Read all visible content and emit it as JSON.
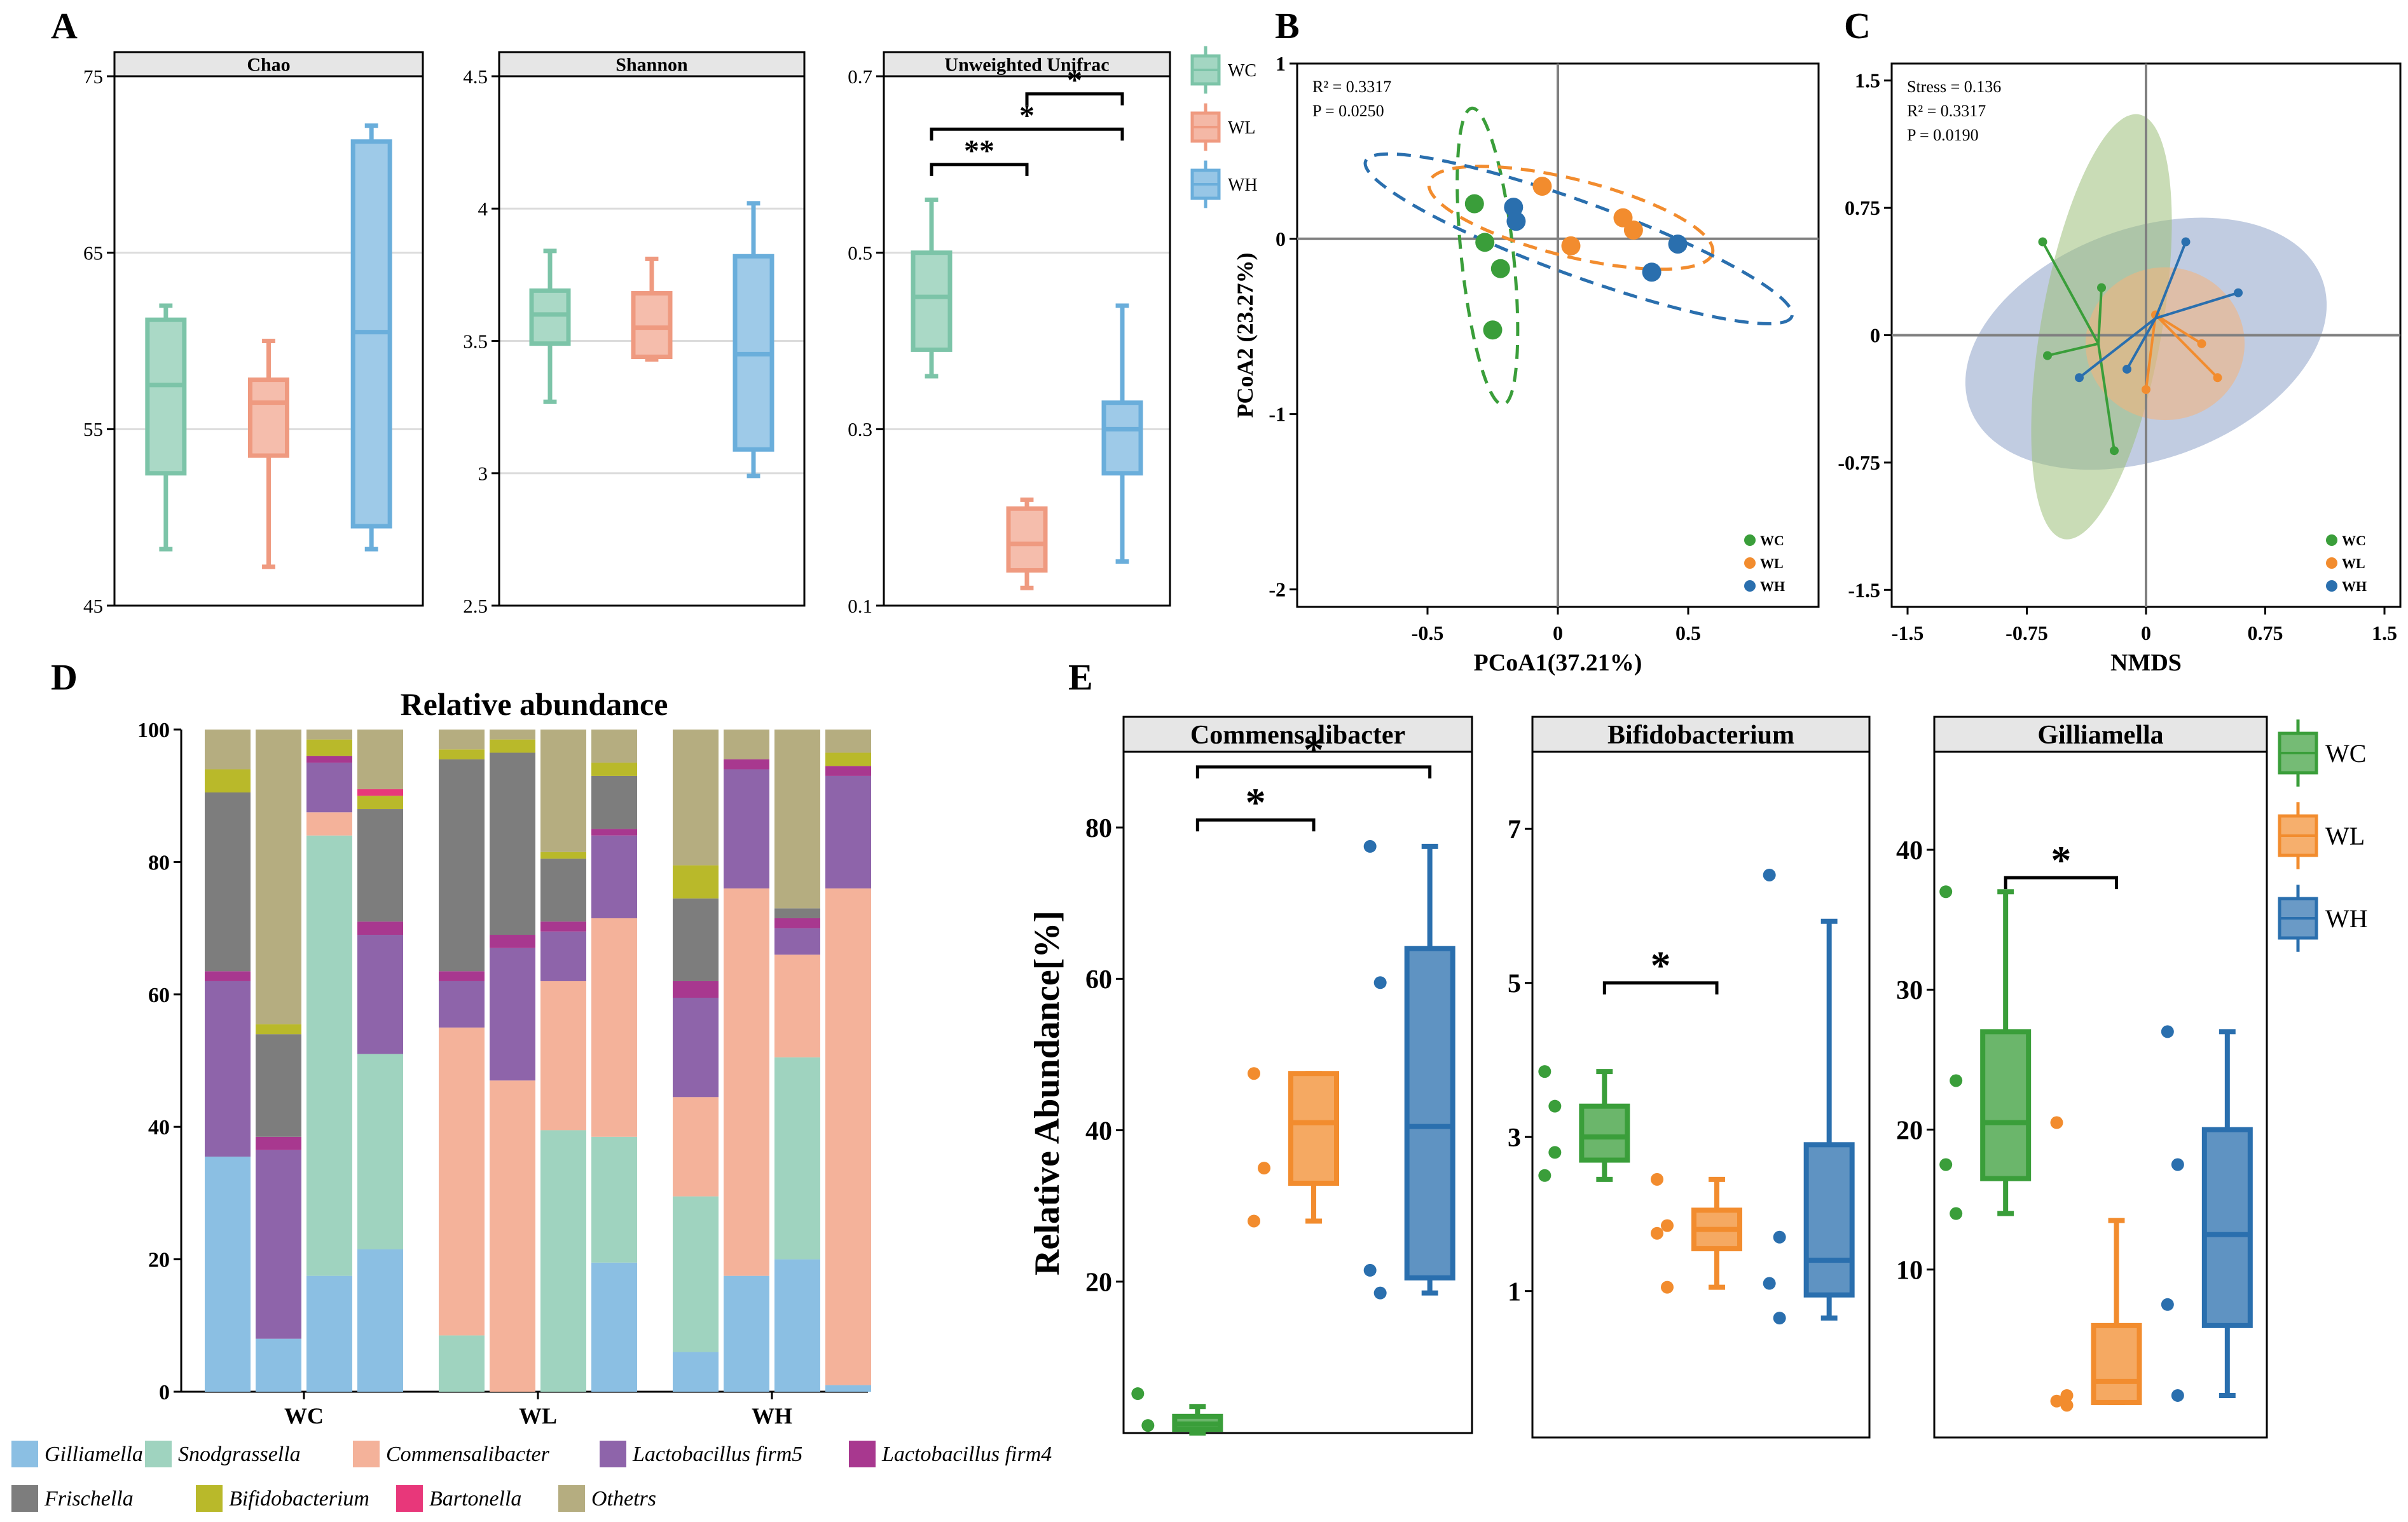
{
  "panel_labels": [
    "A",
    "B",
    "C",
    "D",
    "E"
  ],
  "colors": {
    "WC_A": "#7cc4a8",
    "WL_A": "#ef9a80",
    "WH_A": "#6aaedb",
    "WC": "#3a9e3a",
    "WL": "#f28c2e",
    "WH": "#2a6fae",
    "strip": "#e6e6e6",
    "grid": "#dcdcdc",
    "ellipse_WC": "#9dc07a",
    "ellipse_WL": "#f5b27a",
    "ellipse_WH": "#8ea3c8"
  },
  "chart_data": [
    {
      "id": "A-chao",
      "type": "box",
      "title": "Chao",
      "yticks": [
        "45",
        "55",
        "65",
        "75"
      ],
      "ylim": [
        45,
        75
      ],
      "groups": [
        {
          "name": "WC",
          "min": 48.2,
          "q1": 52.5,
          "median": 57.5,
          "q3": 61.2,
          "max": 62.0
        },
        {
          "name": "WL",
          "min": 47.2,
          "q1": 53.5,
          "median": 56.5,
          "q3": 57.8,
          "max": 60.0
        },
        {
          "name": "WH",
          "min": 48.2,
          "q1": 49.5,
          "median": 60.5,
          "q3": 71.3,
          "max": 72.2
        }
      ]
    },
    {
      "id": "A-shannon",
      "type": "box",
      "title": "Shannon",
      "yticks": [
        "2.5",
        "3",
        "3.5",
        "4",
        "4.5"
      ],
      "ylim": [
        2.5,
        4.5
      ],
      "groups": [
        {
          "name": "WC",
          "min": 3.27,
          "q1": 3.49,
          "median": 3.6,
          "q3": 3.69,
          "max": 3.84
        },
        {
          "name": "WL",
          "min": 3.43,
          "q1": 3.44,
          "median": 3.55,
          "q3": 3.68,
          "max": 3.81
        },
        {
          "name": "WH",
          "min": 2.99,
          "q1": 3.09,
          "median": 3.45,
          "q3": 3.82,
          "max": 4.02
        }
      ]
    },
    {
      "id": "A-unifrac",
      "type": "box",
      "title": "Unweighted Unifrac",
      "yticks": [
        "0.1",
        "0.3",
        "0.5",
        "0.7"
      ],
      "ylim": [
        0.1,
        0.7
      ],
      "groups": [
        {
          "name": "WC",
          "min": 0.36,
          "q1": 0.39,
          "median": 0.45,
          "q3": 0.5,
          "max": 0.56
        },
        {
          "name": "WL",
          "min": 0.12,
          "q1": 0.14,
          "median": 0.17,
          "q3": 0.21,
          "max": 0.22
        },
        {
          "name": "WH",
          "min": 0.15,
          "q1": 0.25,
          "median": 0.3,
          "q3": 0.33,
          "max": 0.44
        }
      ],
      "significance": [
        {
          "from": "WC",
          "to": "WL",
          "label": "**",
          "y": 0.6
        },
        {
          "from": "WC",
          "to": "WH",
          "label": "*",
          "y": 0.64
        },
        {
          "from": "WL",
          "to": "WH",
          "label": "*",
          "y": 0.68
        }
      ],
      "legend": [
        "WC",
        "WL",
        "WH"
      ]
    },
    {
      "id": "B-pcoa",
      "type": "scatter",
      "xlabel": "PCoA1(37.21%)",
      "ylabel": "PCoA2 (23.27%)",
      "xlim": [
        -1.0,
        1.0
      ],
      "ylim": [
        -2.1,
        1.0
      ],
      "xticks": [
        "-0.5",
        "0",
        "0.5"
      ],
      "yticks": [
        "-2",
        "-1",
        "0",
        "1"
      ],
      "stats": [
        "R² = 0.3317",
        "P = 0.0250"
      ],
      "series": [
        {
          "name": "WC",
          "points": [
            [
              -0.32,
              0.2
            ],
            [
              -0.28,
              -0.02
            ],
            [
              -0.22,
              -0.17
            ],
            [
              -0.25,
              -0.52
            ]
          ],
          "ellipse": {
            "cx": -0.27,
            "cy": -0.1,
            "rx": 0.1,
            "ry": 0.85,
            "angle": -6
          }
        },
        {
          "name": "WL",
          "points": [
            [
              -0.06,
              0.3
            ],
            [
              0.05,
              -0.04
            ],
            [
              0.25,
              0.12
            ],
            [
              0.29,
              0.05
            ]
          ],
          "ellipse": {
            "cx": 0.05,
            "cy": 0.12,
            "rx": 0.56,
            "ry": 0.22,
            "angle": 14
          }
        },
        {
          "name": "WH",
          "points": [
            [
              -0.17,
              0.18
            ],
            [
              -0.16,
              0.1
            ],
            [
              0.36,
              -0.19
            ],
            [
              0.46,
              -0.03
            ]
          ],
          "ellipse": {
            "cx": 0.08,
            "cy": 0.0,
            "rx": 0.87,
            "ry": 0.21,
            "angle": 20
          }
        }
      ],
      "legend": [
        "WC",
        "WL",
        "WH"
      ]
    },
    {
      "id": "C-nmds",
      "type": "scatter",
      "xlabel": "NMDS",
      "xlim": [
        -1.6,
        1.6
      ],
      "ylim": [
        -1.6,
        1.6
      ],
      "xticks": [
        "-1.5",
        "-0.75",
        "0",
        "0.75",
        "1.5"
      ],
      "yticks": [
        "-1.5",
        "-0.75",
        "0",
        "0.75",
        "1.5"
      ],
      "stats": [
        "Stress = 0.136",
        "R² = 0.3317",
        "P = 0.0190"
      ],
      "series": [
        {
          "name": "WC",
          "centroid": [
            -0.3,
            -0.05
          ],
          "points": [
            [
              -0.65,
              0.55
            ],
            [
              -0.28,
              0.28
            ],
            [
              -0.2,
              -0.68
            ],
            [
              -0.62,
              -0.12
            ]
          ],
          "ellipse": {
            "cx": -0.28,
            "cy": 0.05,
            "rx": 0.38,
            "ry": 1.27,
            "angle": 10
          }
        },
        {
          "name": "WL",
          "centroid": [
            0.06,
            0.12
          ],
          "points": [
            [
              0.35,
              -0.05
            ],
            [
              0.45,
              -0.25
            ],
            [
              0.0,
              -0.32
            ],
            [
              0.06,
              0.12
            ]
          ],
          "ellipse": {
            "cx": 0.12,
            "cy": -0.05,
            "rx": 0.5,
            "ry": 0.45,
            "angle": 0
          }
        },
        {
          "name": "WH",
          "centroid": [
            0.06,
            0.1
          ],
          "points": [
            [
              0.25,
              0.55
            ],
            [
              0.58,
              0.25
            ],
            [
              -0.12,
              -0.2
            ],
            [
              -0.42,
              -0.25
            ]
          ],
          "ellipse": {
            "cx": 0.0,
            "cy": -0.05,
            "rx": 1.18,
            "ry": 0.68,
            "angle": -20
          }
        }
      ],
      "legend": [
        "WC",
        "WL",
        "WH"
      ]
    },
    {
      "id": "D-abundance",
      "type": "stacked-bar",
      "title": "Relative abundance",
      "yticks": [
        "0",
        "20",
        "40",
        "60",
        "80",
        "100"
      ],
      "ylim": [
        0,
        100
      ],
      "groups": [
        "WC",
        "WL",
        "WH"
      ],
      "taxa": [
        "Gilliamella",
        "Snodgrassella",
        "Commensalibacter",
        "Lactobacillus firm5",
        "Lactobacillus firm4",
        "Frischella",
        "Bifidobacterium",
        "Bartonella",
        "Othetrs"
      ],
      "taxa_colors": [
        "#8bbfe3",
        "#9fd3bf",
        "#f4b29a",
        "#8e64aa",
        "#a8388f",
        "#7d7d7d",
        "#b9b92a",
        "#e8377a",
        "#b5ad80"
      ],
      "bars": [
        {
          "group": "WC",
          "values": [
            35.5,
            0,
            0,
            26.5,
            1.5,
            27,
            3.5,
            0,
            6
          ]
        },
        {
          "group": "WC",
          "values": [
            8,
            0,
            0,
            28.5,
            2,
            15.5,
            1.5,
            0,
            44.5
          ]
        },
        {
          "group": "WC",
          "values": [
            17.5,
            66.5,
            3.5,
            7.5,
            1,
            0,
            2.5,
            0,
            1.5
          ]
        },
        {
          "group": "WC",
          "values": [
            21.5,
            29.5,
            0,
            18,
            2,
            17,
            2,
            1,
            9
          ]
        },
        {
          "group": "WL",
          "values": [
            0,
            8.5,
            46.5,
            7,
            1.5,
            32,
            1.5,
            0,
            3
          ]
        },
        {
          "group": "WL",
          "values": [
            0,
            0,
            47,
            20,
            2,
            27.5,
            2,
            0,
            1.5
          ]
        },
        {
          "group": "WL",
          "values": [
            0,
            39.5,
            22.5,
            7.5,
            1.5,
            9.5,
            1,
            0,
            18.5
          ]
        },
        {
          "group": "WL",
          "values": [
            19.5,
            19,
            33,
            12.5,
            1,
            8,
            2,
            0,
            5
          ]
        },
        {
          "group": "WH",
          "values": [
            6,
            23.5,
            15,
            15,
            2.5,
            12.5,
            5,
            0,
            20.5
          ]
        },
        {
          "group": "WH",
          "values": [
            17.5,
            0,
            58.5,
            18,
            1.5,
            0,
            0,
            0,
            4.5
          ]
        },
        {
          "group": "WH",
          "values": [
            20,
            30.5,
            15.5,
            4,
            1.5,
            1.5,
            0,
            0,
            27
          ]
        },
        {
          "group": "WH",
          "values": [
            1,
            0,
            75,
            17,
            1.5,
            0,
            2,
            0,
            3.5
          ]
        }
      ]
    },
    {
      "id": "E-commensalibacter",
      "type": "box",
      "title": "Commensalibacter",
      "ylabel": "Relative Abundance[%]",
      "yticks": [
        "20",
        "40",
        "60",
        "80"
      ],
      "ylim": [
        0,
        90
      ],
      "groups": [
        {
          "name": "WC",
          "min": 0,
          "q1": 0.5,
          "median": 1.2,
          "q3": 2.2,
          "max": 3.5,
          "points": [
            5.2,
            1.0
          ]
        },
        {
          "name": "WL",
          "min": 28,
          "q1": 33,
          "median": 41,
          "q3": 47.5,
          "max": 47.5,
          "points": [
            47.5,
            35,
            28
          ]
        },
        {
          "name": "WH",
          "min": 18.5,
          "q1": 20.5,
          "median": 40.5,
          "q3": 64,
          "max": 77.5,
          "points": [
            77.5,
            59.5,
            21.5,
            18.5
          ]
        }
      ],
      "significance": [
        {
          "from": "WC",
          "to": "WL",
          "label": "*",
          "y": 81
        },
        {
          "from": "WC",
          "to": "WH",
          "label": "*",
          "y": 88
        }
      ]
    },
    {
      "id": "E-bifidobacterium",
      "type": "box",
      "title": "Bifidobacterium",
      "yticks": [
        "1",
        "3",
        "5",
        "7"
      ],
      "ylim": [
        -0.9,
        8.0
      ],
      "groups": [
        {
          "name": "WC",
          "min": 2.45,
          "q1": 2.7,
          "median": 3.0,
          "q3": 3.4,
          "max": 3.85,
          "points": [
            3.85,
            2.8,
            2.5,
            3.4
          ]
        },
        {
          "name": "WL",
          "min": 1.05,
          "q1": 1.55,
          "median": 1.8,
          "q3": 2.05,
          "max": 2.45,
          "points": [
            2.45,
            1.85,
            1.75,
            1.05
          ]
        },
        {
          "name": "WH",
          "min": 0.65,
          "q1": 0.95,
          "median": 1.4,
          "q3": 2.9,
          "max": 5.8,
          "points": [
            6.4,
            1.7,
            1.1,
            0.65
          ]
        }
      ],
      "significance": [
        {
          "from": "WC",
          "to": "WL",
          "label": "*",
          "y": 5.0
        }
      ]
    },
    {
      "id": "E-gilliamella",
      "type": "box",
      "title": "Gilliamella",
      "yticks": [
        "10",
        "20",
        "30",
        "40"
      ],
      "ylim": [
        -2,
        47
      ],
      "groups": [
        {
          "name": "WC",
          "min": 14,
          "q1": 16.5,
          "median": 20.5,
          "q3": 27,
          "max": 37,
          "points": [
            37,
            23.5,
            17.5,
            14
          ]
        },
        {
          "name": "WL",
          "min": 0.5,
          "q1": 0.5,
          "median": 2,
          "q3": 6,
          "max": 13.5,
          "points": [
            20.5,
            1.0,
            0.6,
            0.3
          ]
        },
        {
          "name": "WH",
          "min": 1.0,
          "q1": 6,
          "median": 12.5,
          "q3": 20,
          "max": 27,
          "points": [
            27,
            17.5,
            7.5,
            1.0
          ]
        }
      ],
      "significance": [
        {
          "from": "WC",
          "to": "WL",
          "label": "*",
          "y": 38
        }
      ],
      "legend": [
        "WC",
        "WL",
        "WH"
      ]
    }
  ]
}
